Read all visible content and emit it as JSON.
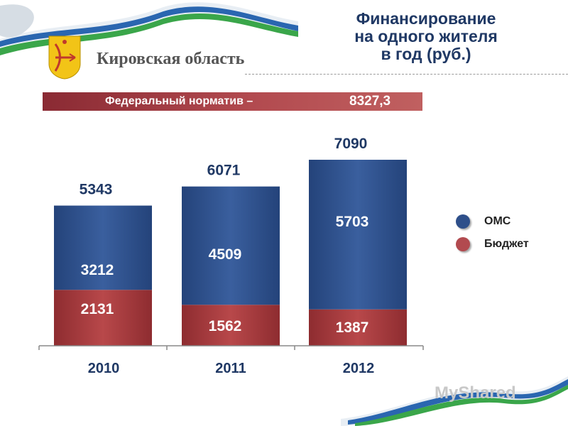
{
  "header": {
    "title_lines": [
      "Финансирование",
      "на одного жителя",
      "в год (руб.)"
    ],
    "region_name": "Кировская область"
  },
  "banner": {
    "label": "Федеральный  норматив –",
    "value": "8327,3"
  },
  "chart_data": {
    "type": "bar",
    "stacked": true,
    "categories": [
      "2010",
      "2011",
      "2012"
    ],
    "series": [
      {
        "name": "Бюджет",
        "values": [
          2131,
          1562,
          1387
        ],
        "color": "#a93a3c"
      },
      {
        "name": "ОМС",
        "values": [
          3212,
          4509,
          5703
        ],
        "color": "#2e4f8a"
      }
    ],
    "totals": [
      5343,
      6071,
      7090
    ],
    "legend_placement": "right",
    "grid": false
  },
  "legend": [
    {
      "label": "ОМС",
      "color": "#2e4f8a"
    },
    {
      "label": "Бюджет",
      "color": "#b24a4f"
    }
  ],
  "watermark": "MyShared"
}
